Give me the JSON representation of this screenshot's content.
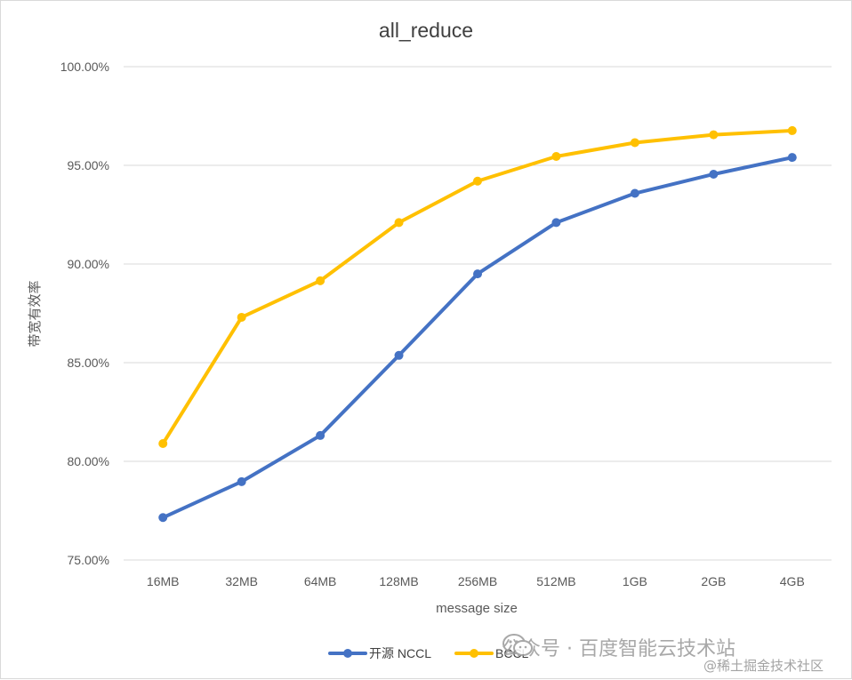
{
  "chart_data": {
    "type": "line",
    "title": "all_reduce",
    "xlabel": "message size",
    "ylabel": "带宽有效率",
    "categories": [
      "16MB",
      "32MB",
      "64MB",
      "128MB",
      "256MB",
      "512MB",
      "1GB",
      "2GB",
      "4GB"
    ],
    "ylim": [
      0.75,
      1.0
    ],
    "yticks": [
      0.75,
      0.8,
      0.85,
      0.9,
      0.95,
      1.0
    ],
    "ytick_labels": [
      "75.00%",
      "80.00%",
      "85.00%",
      "90.00%",
      "95.00%",
      "100.00%"
    ],
    "grid": true,
    "legend_position": "bottom",
    "series": [
      {
        "name": "开源 NCCL",
        "color": "#4472c4",
        "values": [
          0.7715,
          0.7897,
          0.8131,
          0.8537,
          0.895,
          0.921,
          0.9358,
          0.9455,
          0.954
        ]
      },
      {
        "name": "BCCL",
        "color": "#ffc000",
        "values": [
          0.809,
          0.873,
          0.8915,
          0.921,
          0.942,
          0.9545,
          0.9615,
          0.9655,
          0.9676
        ]
      }
    ]
  },
  "watermark": {
    "main": "公众号 · 百度智能云技术站",
    "sub": "@稀土掘金技术社区",
    "icon": "wechat-icon"
  }
}
